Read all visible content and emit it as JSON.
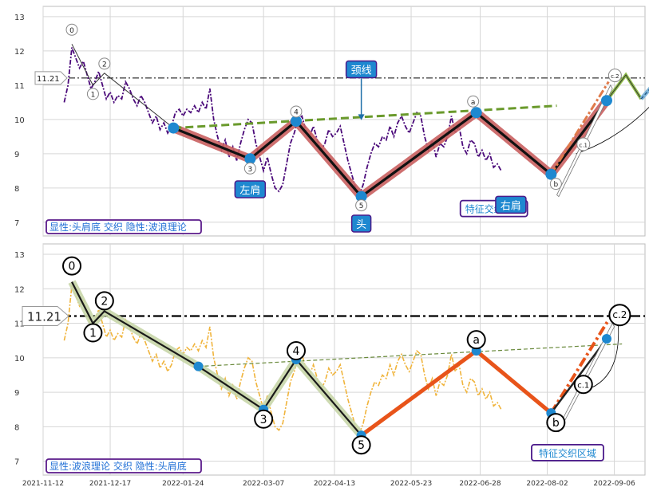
{
  "chart_data": [
    {
      "type": "line",
      "panel": "top",
      "ylim": [
        6.6,
        13.3
      ],
      "yticks": [
        "7",
        "8",
        "9",
        "10",
        "11",
        "12",
        "13"
      ],
      "xlim": [
        "2021-11-12",
        "2022-09-22"
      ],
      "grid": true,
      "price": [
        [
          "2021-11-23",
          10.5
        ],
        [
          "2021-11-25",
          11.0
        ],
        [
          "2021-11-27",
          12.1
        ],
        [
          "2021-11-29",
          11.8
        ],
        [
          "2021-12-01",
          11.5
        ],
        [
          "2021-12-03",
          11.7
        ],
        [
          "2021-12-05",
          11.3
        ],
        [
          "2021-12-07",
          10.9
        ],
        [
          "2021-12-09",
          11.1
        ],
        [
          "2021-12-11",
          11.4
        ],
        [
          "2021-12-13",
          11.0
        ],
        [
          "2021-12-15",
          10.6
        ],
        [
          "2021-12-17",
          10.8
        ],
        [
          "2021-12-19",
          10.5
        ],
        [
          "2021-12-21",
          10.7
        ],
        [
          "2021-12-23",
          10.6
        ],
        [
          "2021-12-25",
          11.1
        ],
        [
          "2021-12-27",
          10.9
        ],
        [
          "2021-12-29",
          10.6
        ],
        [
          "2021-12-31",
          10.4
        ],
        [
          "2022-01-02",
          10.7
        ],
        [
          "2022-01-04",
          10.5
        ],
        [
          "2022-01-06",
          10.2
        ],
        [
          "2022-01-08",
          9.9
        ],
        [
          "2022-01-10",
          10.1
        ],
        [
          "2022-01-12",
          9.7
        ],
        [
          "2022-01-14",
          9.9
        ],
        [
          "2022-01-16",
          9.6
        ],
        [
          "2022-01-18",
          9.8
        ],
        [
          "2022-01-20",
          10.2
        ],
        [
          "2022-01-22",
          10.3
        ],
        [
          "2022-01-24",
          10.1
        ],
        [
          "2022-01-26",
          10.3
        ],
        [
          "2022-01-28",
          10.2
        ],
        [
          "2022-01-30",
          10.4
        ],
        [
          "2022-02-01",
          10.2
        ],
        [
          "2022-02-03",
          10.5
        ],
        [
          "2022-02-05",
          10.3
        ],
        [
          "2022-02-07",
          10.9
        ],
        [
          "2022-02-09",
          10.0
        ],
        [
          "2022-02-11",
          9.5
        ],
        [
          "2022-02-13",
          9.1
        ],
        [
          "2022-02-15",
          9.4
        ],
        [
          "2022-02-17",
          8.9
        ],
        [
          "2022-02-19",
          9.2
        ],
        [
          "2022-02-21",
          8.8
        ],
        [
          "2022-02-23",
          9.3
        ],
        [
          "2022-02-25",
          9.7
        ],
        [
          "2022-02-27",
          10.0
        ],
        [
          "2022-03-01",
          9.9
        ],
        [
          "2022-03-03",
          9.3
        ],
        [
          "2022-03-05",
          8.9
        ],
        [
          "2022-03-07",
          8.5
        ],
        [
          "2022-03-09",
          8.9
        ],
        [
          "2022-03-11",
          8.4
        ],
        [
          "2022-03-13",
          8.0
        ],
        [
          "2022-03-15",
          7.9
        ],
        [
          "2022-03-17",
          8.1
        ],
        [
          "2022-03-19",
          8.7
        ],
        [
          "2022-03-21",
          9.3
        ],
        [
          "2022-03-23",
          9.6
        ],
        [
          "2022-03-25",
          10.0
        ],
        [
          "2022-03-27",
          10.1
        ],
        [
          "2022-03-29",
          9.7
        ],
        [
          "2022-03-31",
          9.5
        ],
        [
          "2022-04-02",
          9.8
        ],
        [
          "2022-04-04",
          9.4
        ],
        [
          "2022-04-06",
          9.1
        ],
        [
          "2022-04-08",
          9.3
        ],
        [
          "2022-04-10",
          9.7
        ],
        [
          "2022-04-12",
          9.5
        ],
        [
          "2022-04-14",
          9.6
        ],
        [
          "2022-04-16",
          9.8
        ],
        [
          "2022-04-18",
          9.3
        ],
        [
          "2022-04-20",
          8.8
        ],
        [
          "2022-04-22",
          8.4
        ],
        [
          "2022-04-24",
          8.0
        ],
        [
          "2022-04-26",
          7.8
        ],
        [
          "2022-04-28",
          8.1
        ],
        [
          "2022-04-30",
          8.6
        ],
        [
          "2022-05-02",
          9.0
        ],
        [
          "2022-05-04",
          9.3
        ],
        [
          "2022-05-06",
          9.2
        ],
        [
          "2022-05-08",
          9.5
        ],
        [
          "2022-05-10",
          9.4
        ],
        [
          "2022-05-12",
          9.8
        ],
        [
          "2022-05-14",
          9.5
        ],
        [
          "2022-05-16",
          9.9
        ],
        [
          "2022-05-18",
          10.1
        ],
        [
          "2022-05-20",
          9.8
        ],
        [
          "2022-05-22",
          9.6
        ],
        [
          "2022-05-24",
          9.9
        ],
        [
          "2022-05-26",
          10.2
        ],
        [
          "2022-05-28",
          10.1
        ],
        [
          "2022-05-30",
          9.5
        ],
        [
          "2022-06-01",
          9.1
        ],
        [
          "2022-06-03",
          9.4
        ],
        [
          "2022-06-05",
          8.9
        ],
        [
          "2022-06-07",
          9.3
        ],
        [
          "2022-06-09",
          9.2
        ],
        [
          "2022-06-11",
          9.5
        ],
        [
          "2022-06-13",
          10.1
        ],
        [
          "2022-06-15",
          9.6
        ],
        [
          "2022-06-17",
          9.8
        ],
        [
          "2022-06-19",
          9.2
        ],
        [
          "2022-06-21",
          9.0
        ],
        [
          "2022-06-23",
          9.4
        ],
        [
          "2022-06-25",
          9.3
        ],
        [
          "2022-06-27",
          8.9
        ],
        [
          "2022-06-29",
          9.1
        ],
        [
          "2022-07-01",
          8.8
        ],
        [
          "2022-07-03",
          9.0
        ],
        [
          "2022-07-05",
          8.6
        ],
        [
          "2022-07-07",
          8.7
        ],
        [
          "2022-07-09",
          8.5
        ]
      ],
      "wave_points": [
        [
          "2021-11-27",
          12.2,
          "0"
        ],
        [
          "2021-12-08",
          11.0,
          "1"
        ],
        [
          "2021-12-14",
          11.35,
          "2"
        ],
        [
          "2022-02-28",
          8.85,
          "3"
        ],
        [
          "2022-03-24",
          9.95,
          "4"
        ],
        [
          "2022-04-27",
          7.75,
          "5"
        ],
        [
          "2022-06-26",
          10.2,
          "a"
        ],
        [
          "2022-08-04",
          8.4,
          "b"
        ],
        [
          "2022-08-25",
          8.95,
          "c.1"
        ],
        [
          "2022-09-03",
          11.1,
          "c.2"
        ]
      ],
      "hs_line": [
        [
          "2022-01-19",
          9.75
        ],
        [
          "2022-02-28",
          8.85
        ],
        [
          "2022-03-24",
          9.95
        ],
        [
          "2022-04-27",
          7.75
        ],
        [
          "2022-06-26",
          10.2
        ],
        [
          "2022-08-04",
          8.4
        ],
        [
          "2022-09-02",
          10.55
        ]
      ],
      "neckline": [
        [
          "2022-01-19",
          9.75
        ],
        [
          "2022-08-07",
          10.4
        ]
      ],
      "resistance_y": 11.21,
      "resistance_label": "11.21",
      "projection": [
        [
          "2022-09-02",
          10.55
        ],
        [
          "2022-09-12",
          11.3
        ],
        [
          "2022-09-20",
          10.6
        ],
        [
          "2022-10-24",
          12.8
        ]
      ],
      "labels": {
        "neck": "颈线",
        "left_shoulder": "左肩",
        "head": "头",
        "right_shoulder": "右肩",
        "zone": "特征交织区域"
      },
      "legend": "显性:头肩底 交织 隐性:波浪理论"
    },
    {
      "type": "line",
      "panel": "bottom",
      "ylim": [
        6.6,
        13.3
      ],
      "yticks": [
        "7",
        "8",
        "9",
        "10",
        "11",
        "12",
        "13"
      ],
      "xlim": [
        "2021-11-12",
        "2022-09-22"
      ],
      "xticks": [
        "2021-11-12",
        "2021-12-17",
        "2022-01-24",
        "2022-03-07",
        "2022-04-13",
        "2022-05-23",
        "2022-06-28",
        "2022-08-02",
        "2022-09-06"
      ],
      "grid": true,
      "wave_points": [
        [
          "2021-11-27",
          12.2,
          "0"
        ],
        [
          "2021-12-08",
          11.0,
          "1"
        ],
        [
          "2021-12-14",
          11.35,
          "2"
        ],
        [
          "2022-03-07",
          8.5,
          "3"
        ],
        [
          "2022-03-24",
          9.95,
          "4"
        ],
        [
          "2022-04-27",
          7.75,
          "5"
        ],
        [
          "2022-06-26",
          10.2,
          "a"
        ],
        [
          "2022-08-04",
          8.4,
          "b"
        ],
        [
          "2022-08-25",
          8.95,
          "c.1"
        ],
        [
          "2022-09-03",
          11.1,
          "c.2"
        ]
      ],
      "impulse_line": [
        [
          "2021-11-27",
          12.2
        ],
        [
          "2021-12-08",
          11.0
        ],
        [
          "2021-12-14",
          11.35
        ],
        [
          "2022-02-01",
          9.75
        ],
        [
          "2022-03-07",
          8.5
        ],
        [
          "2022-03-24",
          9.95
        ],
        [
          "2022-04-27",
          7.75
        ]
      ],
      "correction_line": [
        [
          "2022-04-27",
          7.75
        ],
        [
          "2022-06-26",
          10.2
        ],
        [
          "2022-08-04",
          8.4
        ],
        [
          "2022-09-03",
          11.1
        ]
      ],
      "neckline": [
        [
          "2022-02-01",
          9.75
        ],
        [
          "2022-09-10",
          10.4
        ]
      ],
      "resistance_y": 11.21,
      "resistance_label": "11.21",
      "labels": {
        "zone": "特征交织区域"
      },
      "legend": "显性:波浪理论 交织 隐性:头肩底"
    }
  ]
}
